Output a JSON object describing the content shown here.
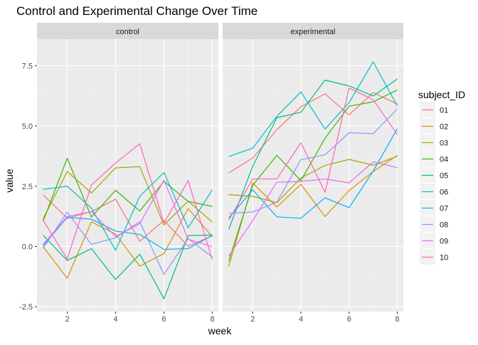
{
  "chart_data": {
    "type": "line",
    "title": "Control and Experimental Change Over Time",
    "xlabel": "week",
    "ylabel": "value",
    "xlim": [
      0.75,
      8.25
    ],
    "ylim": [
      -2.7,
      8.6
    ],
    "x_ticks": [
      2,
      4,
      6,
      8
    ],
    "y_ticks": [
      -2.5,
      0.0,
      2.5,
      5.0,
      7.5
    ],
    "y_tick_labels": [
      "-2.5",
      "0.0",
      "2.5",
      "5.0",
      "7.5"
    ],
    "x_tick_labels": [
      "2",
      "4",
      "6",
      "8"
    ],
    "grid": true,
    "legend_title": "subject_ID",
    "legend_position": "right",
    "x": [
      1,
      2,
      3,
      4,
      5,
      6,
      7,
      8
    ],
    "panels": [
      {
        "name": "control",
        "series": [
          {
            "name": "01",
            "color": "#F8766D",
            "values": [
              2.14,
              1.17,
              1.45,
              1.96,
              0.22,
              1.08,
              0.01,
              0.44
            ]
          },
          {
            "name": "02",
            "color": "#D89000",
            "values": [
              0.0,
              -1.32,
              1.02,
              0.51,
              -0.82,
              -0.29,
              1.57,
              0.41
            ]
          },
          {
            "name": "03",
            "color": "#A3A500",
            "values": [
              1.14,
              3.11,
              2.22,
              3.26,
              3.31,
              0.89,
              1.88,
              1.01
            ]
          },
          {
            "name": "04",
            "color": "#39B600",
            "values": [
              1.04,
              3.66,
              1.22,
              2.33,
              1.47,
              2.7,
              1.87,
              1.66
            ]
          },
          {
            "name": "05",
            "color": "#00BF7D",
            "values": [
              0.47,
              -0.58,
              -0.09,
              -1.37,
              -0.32,
              -2.17,
              0.45,
              0.48
            ]
          },
          {
            "name": "06",
            "color": "#00BFC4",
            "values": [
              2.37,
              2.5,
              1.59,
              -0.16,
              2.08,
              3.07,
              0.78,
              2.35
            ]
          },
          {
            "name": "07",
            "color": "#00B0F6",
            "values": [
              0.03,
              1.21,
              1.13,
              0.64,
              0.5,
              -0.12,
              -0.09,
              0.46
            ]
          },
          {
            "name": "08",
            "color": "#9590FF",
            "values": [
              -0.08,
              1.42,
              0.09,
              0.36,
              1.03,
              -1.16,
              0.33,
              -0.44
            ]
          },
          {
            "name": "09",
            "color": "#E76BF3",
            "values": [
              0.08,
              1.24,
              1.44,
              0.41,
              0.95,
              2.75,
              0.3,
              -0.01
            ]
          },
          {
            "name": "10",
            "color": "#FF62BC",
            "values": [
              1.09,
              -0.52,
              2.55,
              3.46,
              4.26,
              0.97,
              2.73,
              -0.55
            ]
          }
        ]
      },
      {
        "name": "experimental",
        "series": [
          {
            "name": "01",
            "color": "#F8766D",
            "values": [
              3.05,
              3.67,
              4.84,
              5.8,
              6.33,
              5.46,
              6.38,
              5.91
            ]
          },
          {
            "name": "02",
            "color": "#D89000",
            "values": [
              -0.84,
              2.63,
              1.64,
              2.58,
              1.24,
              2.32,
              3.11,
              3.78
            ]
          },
          {
            "name": "03",
            "color": "#A3A500",
            "values": [
              2.15,
              2.08,
              1.82,
              2.84,
              3.36,
              3.61,
              3.37,
              3.74
            ]
          },
          {
            "name": "04",
            "color": "#39B600",
            "values": [
              -0.62,
              2.54,
              3.78,
              2.73,
              4.49,
              5.82,
              6.0,
              6.49
            ]
          },
          {
            "name": "05",
            "color": "#00BF7D",
            "values": [
              0.7,
              3.33,
              5.34,
              5.57,
              6.9,
              6.66,
              6.24,
              6.95
            ]
          },
          {
            "name": "06",
            "color": "#00BFC4",
            "values": [
              3.73,
              4.08,
              5.4,
              6.41,
              4.87,
              5.97,
              7.66,
              5.83
            ]
          },
          {
            "name": "07",
            "color": "#00B0F6",
            "values": [
              1.18,
              2.35,
              1.23,
              1.17,
              2.02,
              1.61,
              3.13,
              4.88
            ]
          },
          {
            "name": "08",
            "color": "#9590FF",
            "values": [
              1.37,
              1.43,
              1.84,
              3.6,
              3.8,
              4.72,
              4.68,
              5.7
            ]
          },
          {
            "name": "09",
            "color": "#E76BF3",
            "values": [
              -0.4,
              1.08,
              2.66,
              2.7,
              2.8,
              2.64,
              3.51,
              3.27
            ]
          },
          {
            "name": "10",
            "color": "#FF62BC",
            "values": [
              1.09,
              2.8,
              2.8,
              4.3,
              2.25,
              6.57,
              6.09,
              4.64
            ]
          }
        ]
      }
    ]
  }
}
